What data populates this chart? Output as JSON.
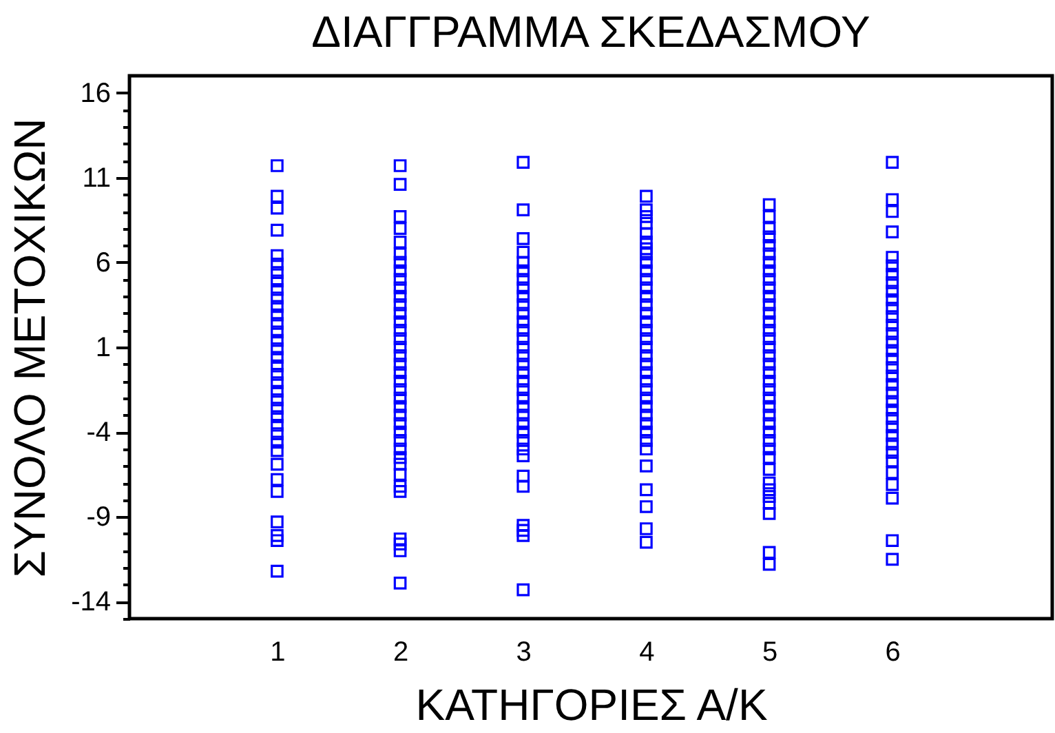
{
  "chart_data": {
    "type": "scatter",
    "title": "ΔΙΑΓΓΡΑΜΜΑ ΣΚΕΔΑΣΜΟΥ",
    "xlabel": "ΚΑΤΗΓΟΡΙΕΣ Α/Κ",
    "ylabel": "ΣΥΝΟΛΟ ΜΕΤΟΧΙΚΩΝ",
    "xlim": [
      -0.2,
      7.3
    ],
    "xticks": [
      1,
      2,
      3,
      4,
      5,
      6
    ],
    "ylim": [
      -15,
      17
    ],
    "yticks": [
      {
        "value": -15,
        "label": null
      },
      -14,
      {
        "value": -13,
        "label": null
      },
      {
        "value": -12,
        "label": null
      },
      {
        "value": -11,
        "label": null
      },
      {
        "value": -10,
        "label": null
      },
      -9,
      {
        "value": -8,
        "label": null
      },
      {
        "value": -7,
        "label": null
      },
      {
        "value": -6,
        "label": null
      },
      {
        "value": -5,
        "label": null
      },
      -4,
      {
        "value": -3,
        "label": null
      },
      {
        "value": -2,
        "label": null
      },
      {
        "value": -1,
        "label": null
      },
      {
        "value": 0,
        "label": null
      },
      1,
      {
        "value": 2,
        "label": null
      },
      {
        "value": 3,
        "label": null
      },
      {
        "value": 4,
        "label": null
      },
      {
        "value": 5,
        "label": null
      },
      6,
      {
        "value": 7,
        "label": null
      },
      {
        "value": 8,
        "label": null
      },
      {
        "value": 9,
        "label": null
      },
      {
        "value": 10,
        "label": null
      },
      11,
      {
        "value": 12,
        "label": null
      },
      {
        "value": 13,
        "label": null
      },
      {
        "value": 14,
        "label": null
      },
      {
        "value": 15,
        "label": null
      },
      16
    ],
    "grid": false,
    "legend": false,
    "marker": "square",
    "series": [
      {
        "color": "#0000ff",
        "x": [
          1,
          1,
          1,
          1,
          1,
          1,
          1,
          1,
          1,
          1,
          1,
          1,
          1,
          1,
          1,
          1,
          1,
          1,
          1,
          1,
          1,
          1,
          1,
          1,
          1,
          1,
          1,
          1,
          1,
          1,
          1,
          1,
          1,
          1,
          1
        ],
        "values": [
          11.7,
          9.9,
          9.2,
          7.9,
          6.4,
          5.9,
          5.4,
          4.9,
          4.4,
          3.9,
          3.4,
          2.9,
          2.4,
          1.9,
          1.4,
          0.9,
          0.4,
          -0.1,
          -0.6,
          -1.1,
          -1.6,
          -2.1,
          -2.6,
          -3.1,
          -3.6,
          -4.1,
          -4.6,
          -5.1,
          -5.9,
          -6.8,
          -7.5,
          -9.3,
          -10.1,
          -10.4,
          -12.2
        ]
      },
      {
        "color": "#0000ff",
        "x": [
          2,
          2,
          2,
          2,
          2,
          2,
          2,
          2,
          2,
          2,
          2,
          2,
          2,
          2,
          2,
          2,
          2,
          2,
          2,
          2,
          2,
          2,
          2,
          2,
          2,
          2,
          2,
          2,
          2,
          2,
          2,
          2,
          2,
          2,
          2,
          2,
          2,
          2
        ],
        "values": [
          11.7,
          10.6,
          8.7,
          8.0,
          7.2,
          6.5,
          6.0,
          5.5,
          5.0,
          4.5,
          4.0,
          3.5,
          3.0,
          2.5,
          2.0,
          1.5,
          1.0,
          0.5,
          0.0,
          -0.5,
          -1.0,
          -1.5,
          -2.0,
          -2.5,
          -3.0,
          -3.5,
          -4.0,
          -4.5,
          -5.0,
          -5.5,
          -5.9,
          -6.5,
          -7.2,
          -7.5,
          -10.3,
          -10.6,
          -11.0,
          -12.9
        ]
      },
      {
        "color": "#0000ff",
        "x": [
          3,
          3,
          3,
          3,
          3,
          3,
          3,
          3,
          3,
          3,
          3,
          3,
          3,
          3,
          3,
          3,
          3,
          3,
          3,
          3,
          3,
          3,
          3,
          3,
          3,
          3,
          3,
          3,
          3,
          3,
          3,
          3,
          3,
          3
        ],
        "values": [
          11.9,
          9.1,
          7.4,
          6.6,
          6.0,
          5.5,
          5.0,
          4.5,
          4.0,
          3.5,
          3.0,
          2.5,
          2.0,
          1.5,
          1.0,
          0.5,
          0.0,
          -0.5,
          -1.0,
          -1.5,
          -2.0,
          -2.5,
          -3.0,
          -3.5,
          -4.0,
          -4.5,
          -5.0,
          -5.4,
          -6.6,
          -7.2,
          -9.5,
          -9.8,
          -10.1,
          -13.3
        ]
      },
      {
        "color": "#0000ff",
        "x": [
          4,
          4,
          4,
          4,
          4,
          4,
          4,
          4,
          4,
          4,
          4,
          4,
          4,
          4,
          4,
          4,
          4,
          4,
          4,
          4,
          4,
          4,
          4,
          4,
          4,
          4,
          4,
          4,
          4,
          4,
          4,
          4,
          4,
          4,
          4,
          4
        ],
        "values": [
          9.9,
          9.1,
          8.7,
          8.3,
          7.7,
          7.2,
          6.8,
          6.5,
          6.0,
          5.5,
          5.0,
          4.5,
          4.0,
          3.5,
          3.0,
          2.5,
          2.0,
          1.5,
          1.0,
          0.5,
          0.0,
          -0.5,
          -1.0,
          -1.5,
          -2.0,
          -2.5,
          -3.0,
          -3.5,
          -4.0,
          -4.5,
          -5.0,
          -6.0,
          -7.4,
          -8.4,
          -9.7,
          -10.5
        ]
      },
      {
        "color": "#0000ff",
        "x": [
          5,
          5,
          5,
          5,
          5,
          5,
          5,
          5,
          5,
          5,
          5,
          5,
          5,
          5,
          5,
          5,
          5,
          5,
          5,
          5,
          5,
          5,
          5,
          5,
          5,
          5,
          5,
          5,
          5,
          5,
          5,
          5,
          5,
          5,
          5,
          5,
          5,
          5
        ],
        "values": [
          9.4,
          8.7,
          8.0,
          7.5,
          7.0,
          6.5,
          6.0,
          5.5,
          5.0,
          4.5,
          4.0,
          3.5,
          3.0,
          2.5,
          2.0,
          1.5,
          1.0,
          0.5,
          0.0,
          -0.5,
          -1.0,
          -1.5,
          -2.0,
          -2.5,
          -3.0,
          -3.5,
          -4.0,
          -4.5,
          -5.0,
          -5.5,
          -6.2,
          -7.0,
          -7.4,
          -7.8,
          -8.2,
          -8.8,
          -11.1,
          -11.8
        ]
      },
      {
        "color": "#0000ff",
        "x": [
          6,
          6,
          6,
          6,
          6,
          6,
          6,
          6,
          6,
          6,
          6,
          6,
          6,
          6,
          6,
          6,
          6,
          6,
          6,
          6,
          6,
          6,
          6,
          6,
          6,
          6,
          6,
          6,
          6,
          6,
          6,
          6,
          6,
          6
        ],
        "values": [
          11.9,
          9.7,
          9.0,
          7.8,
          6.3,
          5.8,
          5.3,
          4.8,
          4.3,
          3.8,
          3.3,
          2.8,
          2.3,
          1.8,
          1.3,
          0.8,
          0.3,
          -0.2,
          -0.7,
          -1.2,
          -1.7,
          -2.2,
          -2.7,
          -3.2,
          -3.7,
          -4.2,
          -4.7,
          -5.2,
          -5.7,
          -6.4,
          -7.1,
          -7.9,
          -10.4,
          -11.5
        ]
      }
    ]
  }
}
